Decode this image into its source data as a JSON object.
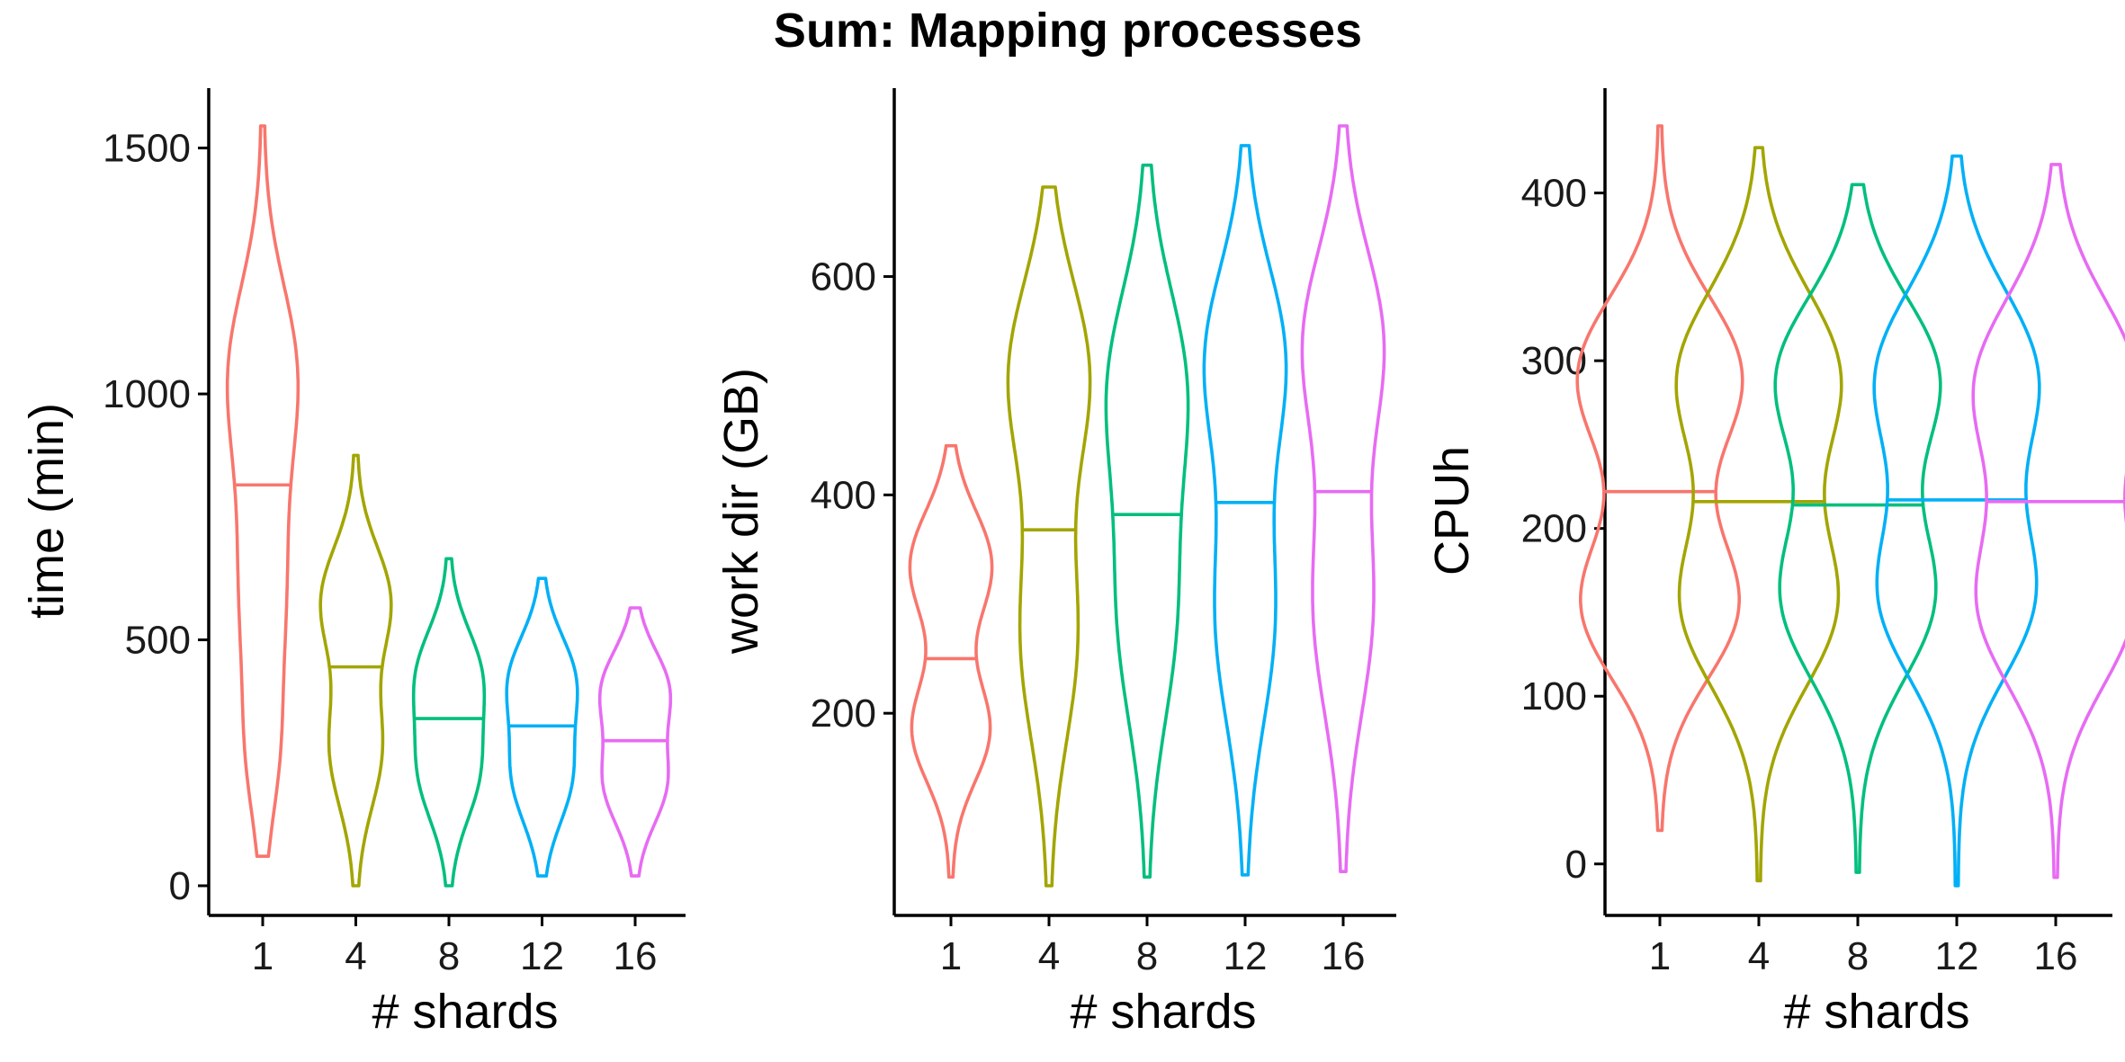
{
  "title": "Sum: Mapping processes",
  "palette": [
    "#F8766D",
    "#A3A500",
    "#00BF7D",
    "#00B0F6",
    "#E76BF3"
  ],
  "chart_data": [
    {
      "type": "violin",
      "title": "",
      "xlabel": "# shards",
      "ylabel": "time (min)",
      "categories": [
        "1",
        "4",
        "8",
        "12",
        "16"
      ],
      "yticks": [
        0,
        500,
        1000,
        1500
      ],
      "ylim": [
        -80,
        1620
      ],
      "grid": false,
      "series": [
        {
          "category": "1",
          "min": 60,
          "max": 1545,
          "median": 815,
          "modes": [
            {
              "c": 1050,
              "s": 180,
              "h": 0.85
            },
            {
              "c": 600,
              "s": 230,
              "h": 0.6
            },
            {
              "c": 250,
              "s": 130,
              "h": 0.25
            }
          ]
        },
        {
          "category": "4",
          "min": 0,
          "max": 875,
          "median": 445,
          "modes": [
            {
              "c": 580,
              "s": 110,
              "h": 1.0
            },
            {
              "c": 280,
              "s": 120,
              "h": 0.75
            }
          ]
        },
        {
          "category": "8",
          "min": 0,
          "max": 665,
          "median": 340,
          "modes": [
            {
              "c": 430,
              "s": 95,
              "h": 1.0
            },
            {
              "c": 230,
              "s": 100,
              "h": 0.95
            }
          ]
        },
        {
          "category": "12",
          "min": 20,
          "max": 625,
          "median": 325,
          "modes": [
            {
              "c": 420,
              "s": 90,
              "h": 1.0
            },
            {
              "c": 220,
              "s": 95,
              "h": 0.9
            }
          ]
        },
        {
          "category": "16",
          "min": 20,
          "max": 565,
          "median": 295,
          "modes": [
            {
              "c": 400,
              "s": 80,
              "h": 1.0
            },
            {
              "c": 210,
              "s": 85,
              "h": 0.95
            }
          ]
        }
      ]
    },
    {
      "type": "violin",
      "title": "",
      "xlabel": "# shards",
      "ylabel": "work dir (GB)",
      "categories": [
        "1",
        "4",
        "8",
        "12",
        "16"
      ],
      "yticks": [
        200,
        400,
        600
      ],
      "ylim": [
        10,
        780
      ],
      "grid": false,
      "series": [
        {
          "category": "1",
          "min": 50,
          "max": 445,
          "median": 250,
          "modes": [
            {
              "c": 335,
              "s": 50,
              "h": 1.0
            },
            {
              "c": 185,
              "s": 48,
              "h": 0.95
            }
          ]
        },
        {
          "category": "4",
          "min": 42,
          "max": 682,
          "median": 368,
          "modes": [
            {
              "c": 510,
              "s": 85,
              "h": 1.0
            },
            {
              "c": 270,
              "s": 95,
              "h": 0.7
            }
          ]
        },
        {
          "category": "8",
          "min": 50,
          "max": 702,
          "median": 382,
          "modes": [
            {
              "c": 500,
              "s": 90,
              "h": 1.0
            },
            {
              "c": 290,
              "s": 100,
              "h": 0.75
            }
          ]
        },
        {
          "category": "12",
          "min": 52,
          "max": 720,
          "median": 393,
          "modes": [
            {
              "c": 525,
              "s": 85,
              "h": 1.0
            },
            {
              "c": 290,
              "s": 100,
              "h": 0.75
            }
          ]
        },
        {
          "category": "16",
          "min": 55,
          "max": 738,
          "median": 403,
          "modes": [
            {
              "c": 540,
              "s": 85,
              "h": 1.0
            },
            {
              "c": 300,
              "s": 100,
              "h": 0.75
            }
          ]
        }
      ]
    },
    {
      "type": "violin",
      "title": "",
      "xlabel": "# shards",
      "ylabel": "CPUh",
      "categories": [
        "1",
        "4",
        "8",
        "12",
        "16"
      ],
      "yticks": [
        0,
        100,
        200,
        300,
        400
      ],
      "ylim": [
        -35,
        460
      ],
      "grid": false,
      "series": [
        {
          "category": "1",
          "min": 20,
          "max": 440,
          "median": 222,
          "modes": [
            {
              "c": 290,
              "s": 48,
              "h": 1.0
            },
            {
              "c": 155,
              "s": 45,
              "h": 0.95
            }
          ]
        },
        {
          "category": "4",
          "min": -10,
          "max": 427,
          "median": 216,
          "modes": [
            {
              "c": 290,
              "s": 52,
              "h": 1.0
            },
            {
              "c": 155,
              "s": 50,
              "h": 0.95
            }
          ]
        },
        {
          "category": "8",
          "min": -5,
          "max": 405,
          "median": 214,
          "modes": [
            {
              "c": 290,
              "s": 48,
              "h": 1.0
            },
            {
              "c": 160,
              "s": 50,
              "h": 0.95
            }
          ]
        },
        {
          "category": "12",
          "min": -13,
          "max": 422,
          "median": 217,
          "modes": [
            {
              "c": 290,
              "s": 52,
              "h": 1.0
            },
            {
              "c": 160,
              "s": 50,
              "h": 0.95
            }
          ]
        },
        {
          "category": "16",
          "min": -8,
          "max": 417,
          "median": 216,
          "modes": [
            {
              "c": 285,
              "s": 52,
              "h": 1.0
            },
            {
              "c": 155,
              "s": 50,
              "h": 0.95
            }
          ]
        }
      ]
    }
  ]
}
